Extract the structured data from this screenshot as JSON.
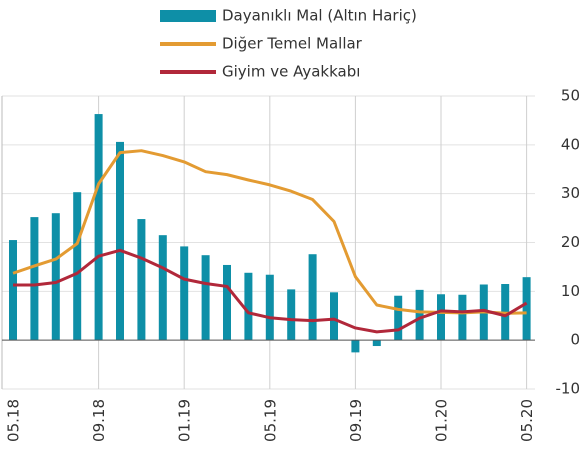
{
  "chart_data": {
    "type": "bar_line",
    "categories": [
      "05.18",
      null,
      null,
      null,
      "09.18",
      null,
      null,
      null,
      "01.19",
      null,
      null,
      null,
      "05.19",
      null,
      null,
      null,
      "09.19",
      null,
      null,
      null,
      "01.20",
      null,
      null,
      null,
      "05.20"
    ],
    "series": [
      {
        "name": "Dayanıklı Mal (Altın Hariç)",
        "type": "bar",
        "color": "#0e8fa7",
        "values": [
          20.5,
          25.2,
          26,
          30.3,
          46.3,
          40.6,
          24.8,
          21.5,
          19.2,
          17.4,
          15.4,
          13.8,
          13.4,
          10.4,
          17.6,
          9.8,
          -2.5,
          -1.2,
          9.1,
          10.3,
          9.4,
          9.3,
          11.4,
          11.5,
          12.9
        ]
      },
      {
        "name": "Diğer Temel Mallar",
        "type": "line",
        "color": "#e39b32",
        "values": [
          13.7,
          15.2,
          16.6,
          19.8,
          32,
          38.4,
          38.8,
          37.8,
          36.5,
          34.5,
          33.9,
          32.8,
          31.8,
          30.5,
          28.8,
          24.3,
          13,
          7.2,
          6.3,
          5.8,
          5.7,
          5.6,
          5.8,
          5.5,
          5.6
        ]
      },
      {
        "name": "Giyim ve Ayakkabı",
        "type": "line",
        "color": "#b1283a",
        "values": [
          11.3,
          11.3,
          11.8,
          13.7,
          17.2,
          18.4,
          16.8,
          14.8,
          12.5,
          11.6,
          11,
          5.6,
          4.6,
          4.2,
          4.0,
          4.3,
          2.5,
          1.7,
          2.1,
          4.5,
          6,
          5.8,
          6.1,
          5,
          7.6
        ]
      }
    ],
    "ylim": [
      -10,
      50
    ],
    "yticks": [
      -10,
      0,
      10,
      20,
      30,
      40,
      50
    ],
    "grid": true
  }
}
